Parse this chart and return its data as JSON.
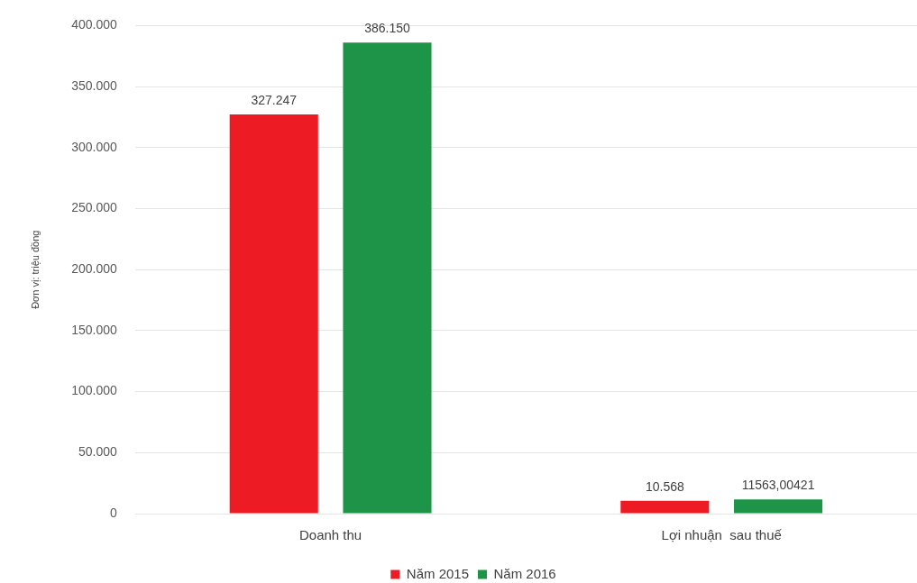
{
  "chart_data": {
    "type": "bar",
    "ylabel": "Đơn vị: triệu đồng",
    "categories": [
      "Doanh thu",
      "Lợi nhuận  sau thuế"
    ],
    "series": [
      {
        "name": "Năm 2015",
        "color": "#ed1c24",
        "values": [
          327247,
          10568
        ],
        "value_labels": [
          "327.247",
          "10.568"
        ]
      },
      {
        "name": "Năm 2016",
        "color": "#1e9448",
        "values": [
          386150,
          11563.00421
        ],
        "value_labels": [
          "386.150",
          "11563,00421"
        ]
      }
    ],
    "ylim": [
      0,
      400000
    ],
    "yticks": [
      0,
      {
        "value": 50000,
        "label": "50.000"
      },
      {
        "value": 100000,
        "label": "100.000"
      },
      {
        "value": 150000,
        "label": "150.000"
      },
      {
        "value": 200000,
        "label": "200.000"
      },
      {
        "value": 250000,
        "label": "250.000"
      },
      {
        "value": 300000,
        "label": "300.000"
      },
      {
        "value": 350000,
        "label": "350.000"
      },
      {
        "value": 400000,
        "label": "400.000"
      }
    ],
    "grid": "y",
    "legend": "bottom"
  }
}
